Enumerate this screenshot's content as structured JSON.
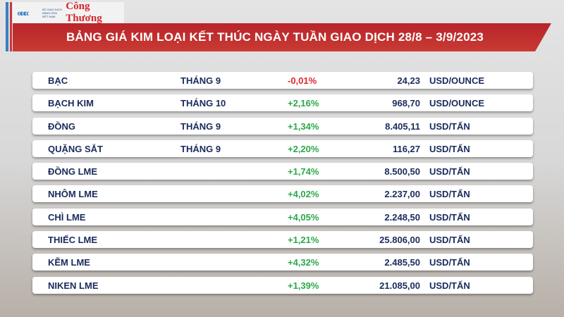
{
  "logo": {
    "exchange": "SỞ GIAO DỊCH HÀNG HÓA VIỆT NAM",
    "brand": "Công Thương"
  },
  "title": "BẢNG GIÁ KIM LOẠI KẾT THÚC NGÀY TUẦN GIAO DỊCH 28/8 – 3/9/2023",
  "colors": {
    "banner": "#c0302f",
    "positive": "#2aa84a",
    "negative": "#e0262b",
    "text": "#1a2b5c"
  },
  "rows": [
    {
      "name": "BẠC",
      "term": "THÁNG 9",
      "change": "-0,01%",
      "price": "24,23",
      "unit": "USD/OUNCE",
      "dir": "neg"
    },
    {
      "name": "BẠCH KIM",
      "term": "THÁNG 10",
      "change": "+2,16%",
      "price": "968,70",
      "unit": "USD/OUNCE",
      "dir": "pos"
    },
    {
      "name": "ĐỒNG",
      "term": "THÁNG 9",
      "change": "+1,34%",
      "price": "8.405,11",
      "unit": "USD/TẤN",
      "dir": "pos"
    },
    {
      "name": "QUẶNG SẮT",
      "term": "THÁNG 9",
      "change": "+2,20%",
      "price": "116,27",
      "unit": "USD/TẤN",
      "dir": "pos"
    },
    {
      "name": "ĐỒNG LME",
      "term": "",
      "change": "+1,74%",
      "price": "8.500,50",
      "unit": "USD/TẤN",
      "dir": "pos"
    },
    {
      "name": "NHÔM LME",
      "term": "",
      "change": "+4,02%",
      "price": "2.237,00",
      "unit": "USD/TẤN",
      "dir": "pos"
    },
    {
      "name": "CHÌ LME",
      "term": "",
      "change": "+4,05%",
      "price": "2.248,50",
      "unit": "USD/TẤN",
      "dir": "pos"
    },
    {
      "name": "THIẾC LME",
      "term": "",
      "change": "+1,21%",
      "price": "25.806,00",
      "unit": "USD/TẤN",
      "dir": "pos"
    },
    {
      "name": "KẼM LME",
      "term": "",
      "change": "+4,32%",
      "price": "2.485,50",
      "unit": "USD/TẤN",
      "dir": "pos"
    },
    {
      "name": "NIKEN LME",
      "term": "",
      "change": "+1,39%",
      "price": "21.085,00",
      "unit": "USD/TẤN",
      "dir": "pos"
    }
  ]
}
